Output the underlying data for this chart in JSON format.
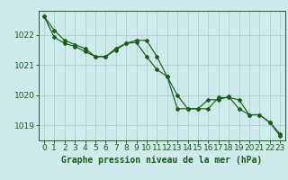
{
  "title": "Graphe pression niveau de la mer (hPa)",
  "background_color": "#ceeaea",
  "grid_color": "#aacece",
  "line_color": "#1a5c1a",
  "x_labels": [
    "0",
    "1",
    "2",
    "3",
    "4",
    "5",
    "6",
    "7",
    "8",
    "9",
    "10",
    "11",
    "12",
    "13",
    "14",
    "15",
    "16",
    "17",
    "18",
    "19",
    "20",
    "21",
    "22",
    "23"
  ],
  "series1": [
    1022.62,
    1022.15,
    1021.82,
    1021.68,
    1021.55,
    1021.28,
    1021.28,
    1021.55,
    1021.72,
    1021.75,
    1021.28,
    1020.85,
    1020.62,
    1019.55,
    1019.55,
    1019.55,
    1019.85,
    1019.85,
    1019.95,
    1019.55,
    1019.35,
    1019.35,
    1019.1,
    1018.72
  ],
  "series2": [
    1022.62,
    1021.92,
    1021.72,
    1021.62,
    1021.45,
    1021.28,
    1021.28,
    1021.5,
    1021.72,
    1021.82,
    1021.82,
    1021.28,
    1020.62,
    1020.0,
    1019.55,
    1019.55,
    1019.55,
    1019.92,
    1019.92,
    1019.85,
    1019.35,
    1019.35,
    1019.1,
    1018.65
  ],
  "ylim_min": 1018.5,
  "ylim_max": 1022.8,
  "yticks": [
    1019,
    1020,
    1021,
    1022
  ],
  "tick_fontsize": 6.5,
  "title_fontsize": 7.0
}
